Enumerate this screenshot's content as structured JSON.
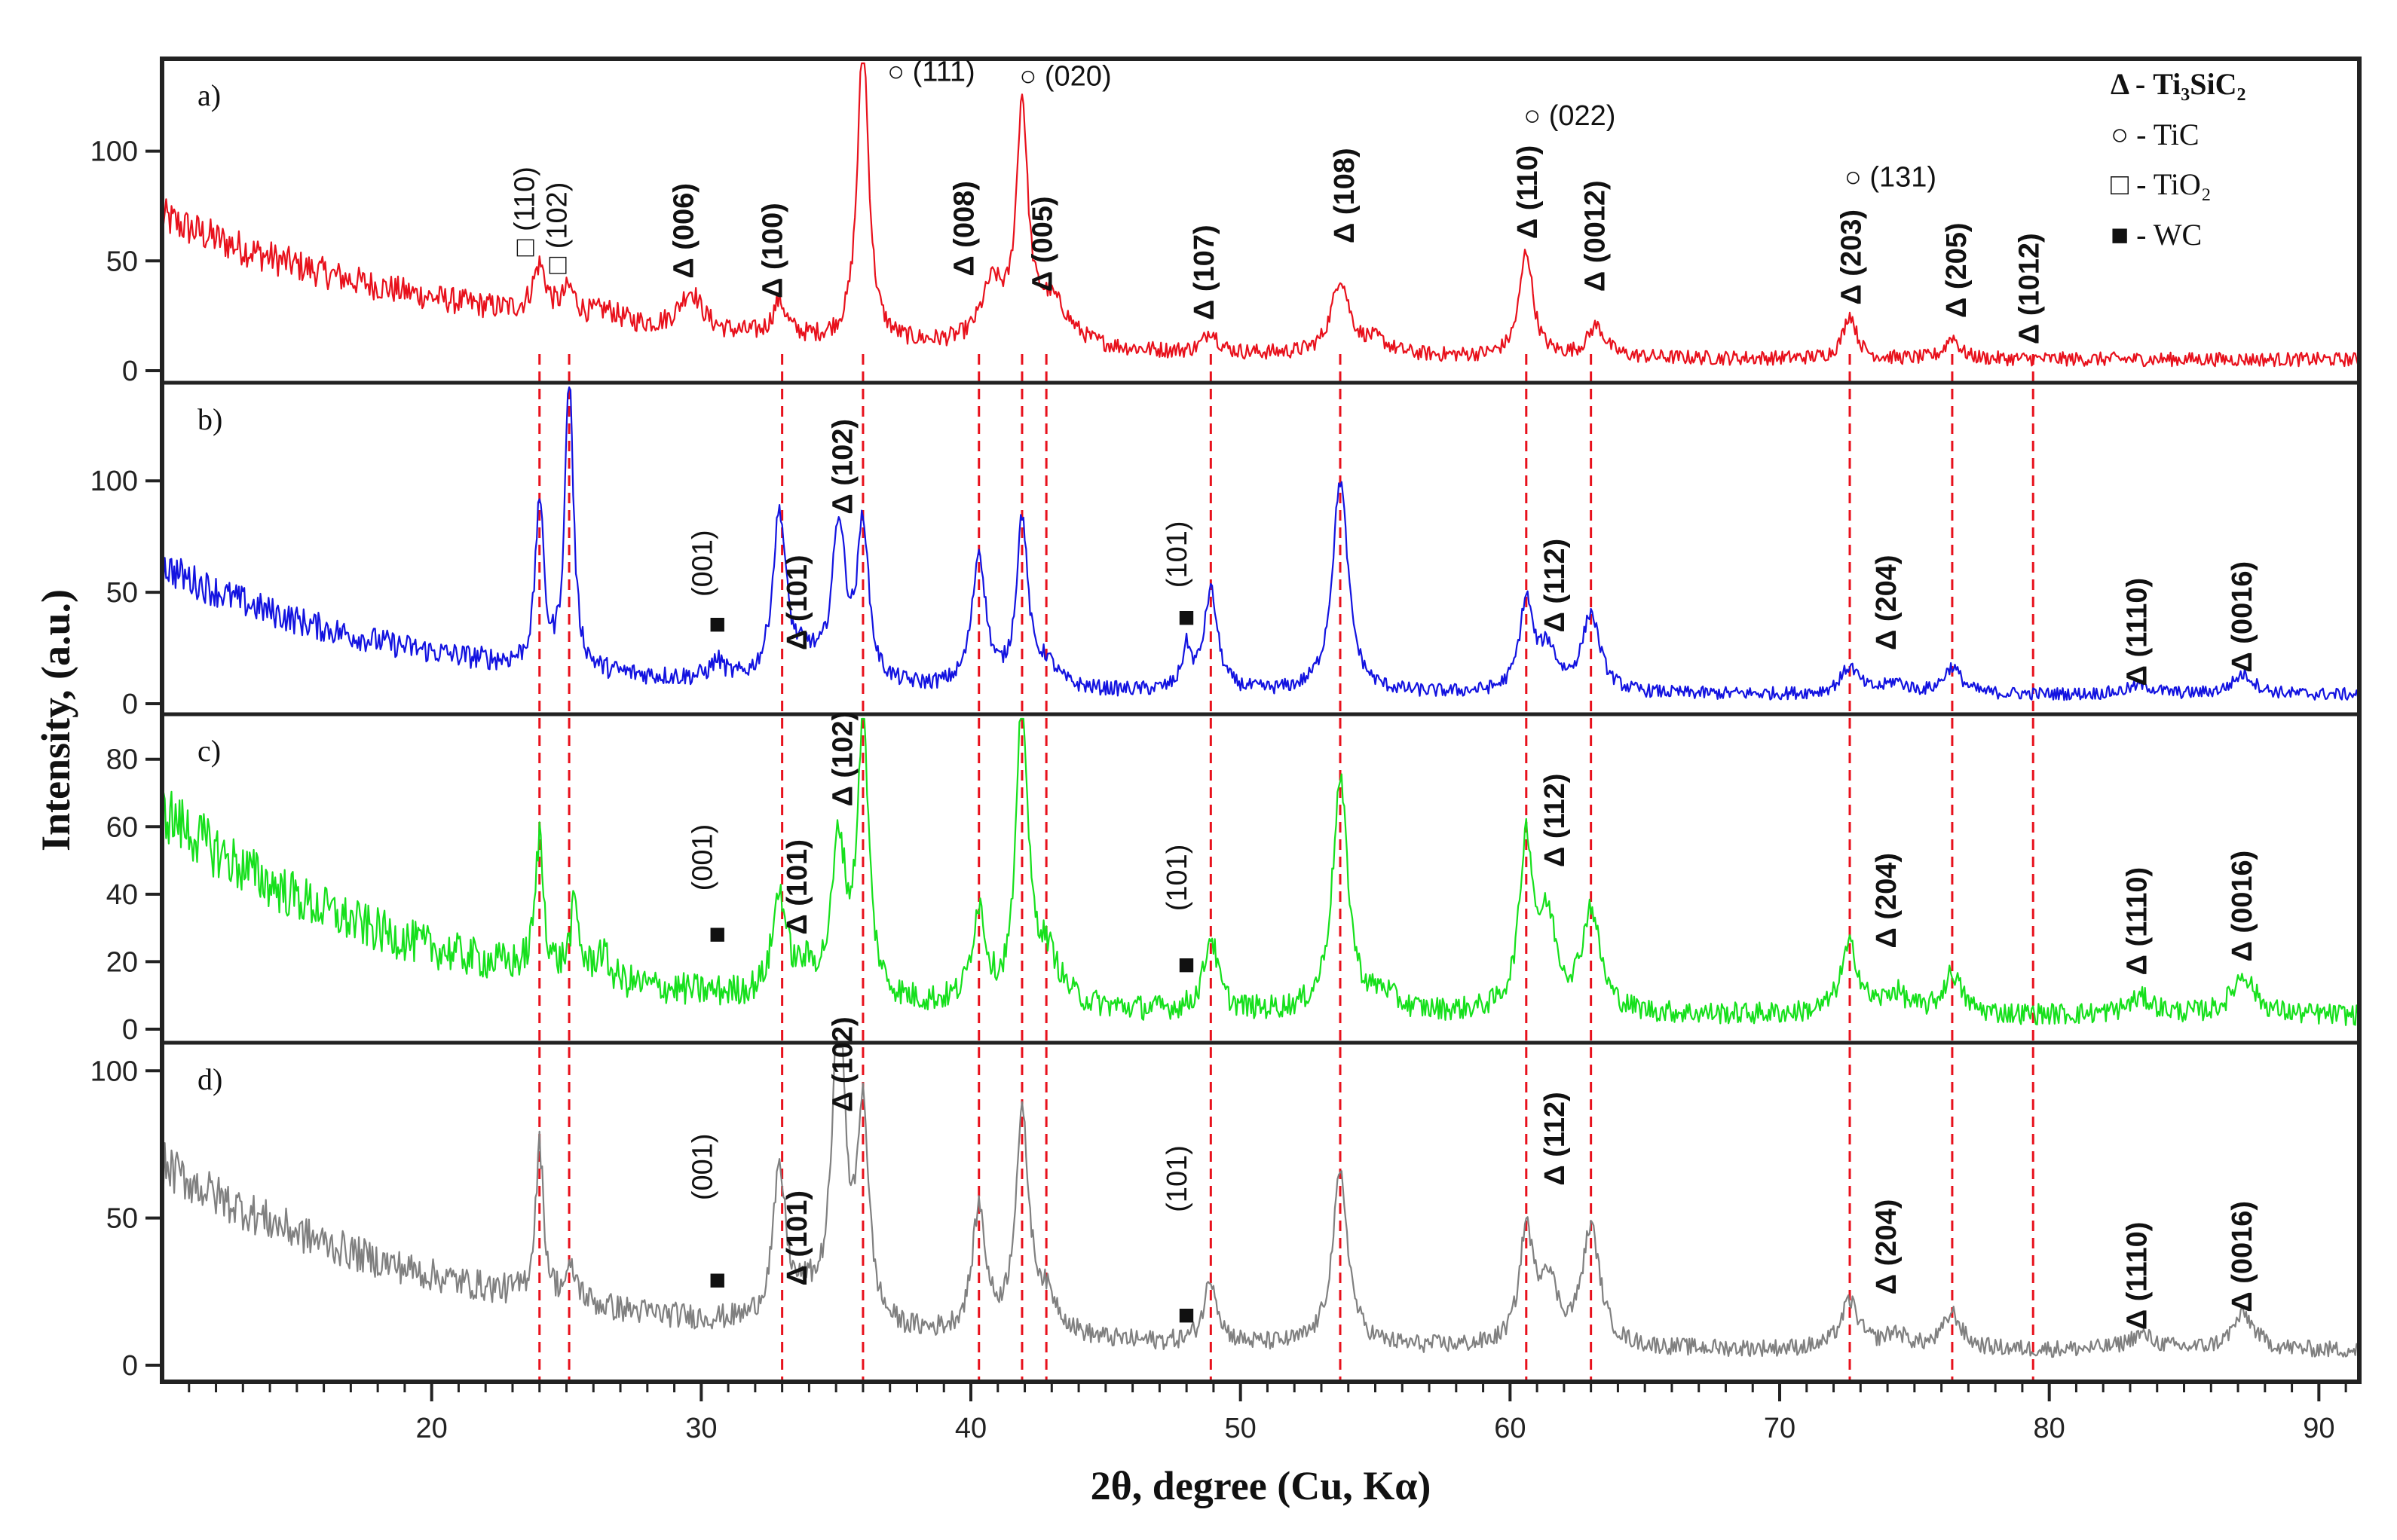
{
  "chart_data": {
    "type": "line",
    "xlabel": "2θ, degree (Cu, Kα)",
    "ylabel": "Intensity, (a.u.)",
    "xlim": [
      10,
      91.5
    ],
    "x_ticks": [
      20,
      30,
      40,
      50,
      60,
      70,
      80,
      90
    ],
    "reference_lines_x": [
      24.0,
      25.1,
      33.0,
      36.0,
      40.3,
      41.9,
      42.8,
      48.9,
      53.7,
      60.6,
      63.0,
      72.6,
      76.4,
      79.4
    ],
    "colors": {
      "a": "#e8111c",
      "b": "#1313e0",
      "c": "#16e01c",
      "d": "#808080",
      "guide": "#e8111c"
    },
    "legend": [
      {
        "symbol": "triangle",
        "text": "Δ - Ti₃SiC₂"
      },
      {
        "symbol": "circle",
        "text": "○ - TiC"
      },
      {
        "symbol": "square-open",
        "text": "□ - TiO₂"
      },
      {
        "symbol": "square-filled",
        "text": "■ - WC"
      }
    ],
    "panels": [
      {
        "tag": "a)",
        "color": "#e8111c",
        "ylim": [
          0,
          140
        ],
        "yticks": [
          0,
          50,
          100
        ],
        "background": {
          "start": 70,
          "decay": 12,
          "floor": 5,
          "noise": 9
        },
        "peaks": [
          [
            24.0,
            22,
            0.3
          ],
          [
            25.1,
            12,
            0.3
          ],
          [
            26.5,
            5,
            0.6
          ],
          [
            29.6,
            18,
            0.5
          ],
          [
            32.9,
            16,
            0.3
          ],
          [
            36.0,
            138,
            0.25
          ],
          [
            40.8,
            26,
            0.5
          ],
          [
            41.9,
            105,
            0.25
          ],
          [
            43.0,
            20,
            0.8
          ],
          [
            48.9,
            10,
            0.3
          ],
          [
            53.7,
            34,
            0.4
          ],
          [
            55.0,
            6,
            0.6
          ],
          [
            60.6,
            48,
            0.3
          ],
          [
            63.2,
            14,
            0.4
          ],
          [
            72.6,
            20,
            0.3
          ],
          [
            76.4,
            10,
            0.3
          ]
        ],
        "labels": [
          {
            "x": 23.8,
            "y": 52,
            "text": "□ (110)",
            "bold": false
          },
          {
            "x": 25.0,
            "y": 44,
            "text": "□ (102)",
            "bold": false
          },
          {
            "x": 29.7,
            "y": 42,
            "text": "Δ (006)",
            "bold": true
          },
          {
            "x": 33.0,
            "y": 33,
            "text": "Δ (100)",
            "bold": true
          },
          {
            "x": 40.1,
            "y": 43,
            "text": "Δ (008)",
            "bold": true
          },
          {
            "x": 43.0,
            "y": 36,
            "text": "Δ (005)",
            "bold": true
          },
          {
            "x": 49.0,
            "y": 23,
            "text": "Δ (107)",
            "bold": true
          },
          {
            "x": 54.2,
            "y": 58,
            "text": "Δ (108)",
            "bold": true
          },
          {
            "x": 61.0,
            "y": 60,
            "text": "Δ (110)",
            "bold": true
          },
          {
            "x": 63.5,
            "y": 36,
            "text": "Δ (0012)",
            "bold": true
          },
          {
            "x": 73.0,
            "y": 30,
            "text": "Δ (203)",
            "bold": true
          },
          {
            "x": 76.9,
            "y": 24,
            "text": "Δ (205)",
            "bold": true
          },
          {
            "x": 79.6,
            "y": 12,
            "text": "Δ (1012)",
            "bold": true
          }
        ],
        "hlabels": [
          {
            "x": 36.9,
            "y": 136,
            "text": "○ (111)"
          },
          {
            "x": 41.8,
            "y": 134,
            "text": "○ (020)"
          },
          {
            "x": 60.5,
            "y": 116,
            "text": "○ (022)"
          },
          {
            "x": 72.4,
            "y": 88,
            "text": "○ (131)"
          }
        ]
      },
      {
        "tag": "b)",
        "color": "#1313e0",
        "ylim": [
          0,
          142
        ],
        "yticks": [
          0,
          50,
          100
        ],
        "background": {
          "start": 62,
          "decay": 9,
          "floor": 4,
          "noise": 8
        },
        "peaks": [
          [
            24.0,
            75,
            0.18
          ],
          [
            25.1,
            135,
            0.18
          ],
          [
            30.6,
            8,
            0.3
          ],
          [
            32.9,
            75,
            0.3
          ],
          [
            33.9,
            10,
            0.5
          ],
          [
            35.1,
            70,
            0.3
          ],
          [
            36.0,
            70,
            0.25
          ],
          [
            40.3,
            60,
            0.3
          ],
          [
            41.9,
            75,
            0.25
          ],
          [
            42.8,
            10,
            0.5
          ],
          [
            48.0,
            18,
            0.2
          ],
          [
            48.9,
            45,
            0.3
          ],
          [
            53.7,
            95,
            0.35
          ],
          [
            60.6,
            40,
            0.3
          ],
          [
            61.4,
            18,
            0.4
          ],
          [
            63.0,
            35,
            0.4
          ],
          [
            72.6,
            12,
            0.4
          ],
          [
            74.3,
            5,
            0.5
          ],
          [
            76.4,
            12,
            0.4
          ],
          [
            83.4,
            4,
            0.6
          ],
          [
            87.2,
            9,
            0.5
          ]
        ],
        "labels": [
          {
            "x": 30.4,
            "y": 48,
            "text": "(001)",
            "bold": false
          },
          {
            "x": 33.9,
            "y": 24,
            "text": "Δ (101)",
            "bold": true
          },
          {
            "x": 35.6,
            "y": 85,
            "text": "Δ (102)",
            "bold": true
          },
          {
            "x": 48.0,
            "y": 52,
            "text": "(101)",
            "bold": false
          },
          {
            "x": 62.0,
            "y": 32,
            "text": "Δ (112)",
            "bold": true
          },
          {
            "x": 74.3,
            "y": 24,
            "text": "Δ (204)",
            "bold": true
          },
          {
            "x": 83.6,
            "y": 8,
            "text": "Δ (1110)",
            "bold": true
          },
          {
            "x": 87.5,
            "y": 14,
            "text": "Δ (0016)",
            "bold": true
          }
        ],
        "markers": [
          {
            "x": 30.6,
            "y": 37,
            "text": "■"
          },
          {
            "x": 48.0,
            "y": 40,
            "text": "■"
          }
        ]
      },
      {
        "tag": "c)",
        "color": "#16e01c",
        "ylim": [
          0,
          92
        ],
        "yticks": [
          0,
          20,
          40,
          60,
          80
        ],
        "background": {
          "start": 65,
          "decay": 9,
          "floor": 4,
          "noise": 9
        },
        "peaks": [
          [
            24.0,
            40,
            0.18
          ],
          [
            25.3,
            20,
            0.2
          ],
          [
            26.3,
            8,
            0.3
          ],
          [
            32.9,
            30,
            0.3
          ],
          [
            33.9,
            7,
            0.5
          ],
          [
            35.1,
            45,
            0.3
          ],
          [
            36.0,
            82,
            0.25
          ],
          [
            40.3,
            28,
            0.3
          ],
          [
            41.9,
            88,
            0.25
          ],
          [
            42.8,
            15,
            0.6
          ],
          [
            48.9,
            22,
            0.3
          ],
          [
            53.7,
            68,
            0.35
          ],
          [
            55.3,
            5,
            0.5
          ],
          [
            60.6,
            50,
            0.3
          ],
          [
            61.4,
            25,
            0.4
          ],
          [
            63.0,
            30,
            0.4
          ],
          [
            72.6,
            20,
            0.4
          ],
          [
            74.3,
            6,
            0.5
          ],
          [
            76.4,
            12,
            0.4
          ],
          [
            83.4,
            5,
            0.6
          ],
          [
            87.2,
            12,
            0.5
          ]
        ],
        "labels": [
          {
            "x": 30.4,
            "y": 41,
            "text": "(001)",
            "bold": false
          },
          {
            "x": 33.9,
            "y": 28,
            "text": "Δ (101)",
            "bold": true
          },
          {
            "x": 35.6,
            "y": 66,
            "text": "Δ (102)",
            "bold": true
          },
          {
            "x": 48.0,
            "y": 35,
            "text": "(101)",
            "bold": false
          },
          {
            "x": 62.0,
            "y": 48,
            "text": "Δ (112)",
            "bold": true
          },
          {
            "x": 74.3,
            "y": 24,
            "text": "Δ (204)",
            "bold": true
          },
          {
            "x": 83.6,
            "y": 16,
            "text": "Δ (1110)",
            "bold": true
          },
          {
            "x": 87.5,
            "y": 20,
            "text": "Δ (0016)",
            "bold": true
          }
        ],
        "markers": [
          {
            "x": 30.6,
            "y": 29,
            "text": "■"
          },
          {
            "x": 48.0,
            "y": 20,
            "text": "■"
          }
        ]
      },
      {
        "tag": "d)",
        "color": "#808080",
        "ylim": [
          0,
          108
        ],
        "yticks": [
          0,
          50,
          100
        ],
        "background": {
          "start": 68,
          "decay": 11,
          "floor": 5,
          "noise": 8
        },
        "peaks": [
          [
            24.0,
            52,
            0.18
          ],
          [
            25.2,
            10,
            0.3
          ],
          [
            32.9,
            50,
            0.3
          ],
          [
            33.9,
            8,
            0.5
          ],
          [
            35.1,
            105,
            0.3
          ],
          [
            36.0,
            72,
            0.25
          ],
          [
            40.3,
            42,
            0.3
          ],
          [
            41.9,
            72,
            0.3
          ],
          [
            42.8,
            12,
            0.6
          ],
          [
            48.9,
            22,
            0.3
          ],
          [
            53.7,
            58,
            0.35
          ],
          [
            60.6,
            38,
            0.3
          ],
          [
            61.4,
            22,
            0.4
          ],
          [
            63.0,
            40,
            0.4
          ],
          [
            72.6,
            16,
            0.4
          ],
          [
            74.3,
            5,
            0.5
          ],
          [
            76.4,
            12,
            0.4
          ],
          [
            83.4,
            5,
            0.6
          ],
          [
            87.2,
            12,
            0.5
          ]
        ],
        "labels": [
          {
            "x": 30.4,
            "y": 56,
            "text": "(001)",
            "bold": false
          },
          {
            "x": 33.9,
            "y": 27,
            "text": "Δ (101)",
            "bold": true
          },
          {
            "x": 35.6,
            "y": 86,
            "text": "Δ (102)",
            "bold": true
          },
          {
            "x": 48.0,
            "y": 52,
            "text": "(101)",
            "bold": false
          },
          {
            "x": 62.0,
            "y": 61,
            "text": "Δ (112)",
            "bold": true
          },
          {
            "x": 74.3,
            "y": 24,
            "text": "Δ (204)",
            "bold": true
          },
          {
            "x": 83.6,
            "y": 12,
            "text": "Δ (1110)",
            "bold": true
          },
          {
            "x": 87.5,
            "y": 18,
            "text": "Δ (0016)",
            "bold": true
          }
        ],
        "markers": [
          {
            "x": 30.6,
            "y": 30,
            "text": "■"
          },
          {
            "x": 48.0,
            "y": 18,
            "text": "■"
          }
        ]
      }
    ]
  }
}
